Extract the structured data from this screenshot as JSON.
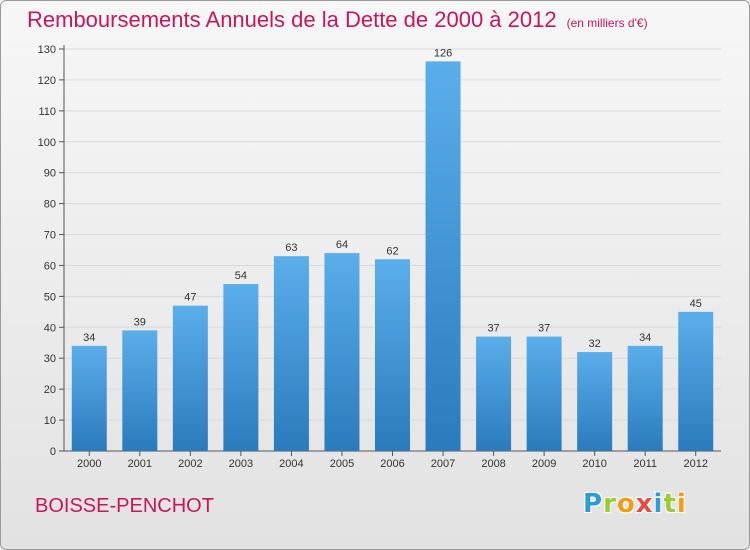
{
  "header": {
    "title": "Remboursements Annuels de la Dette de 2000 à 2012",
    "unit": "(en milliers d'€)"
  },
  "commune": "BOISSE-PENCHOT",
  "logo": {
    "letters": [
      {
        "ch": "P",
        "color": "#2e9ad6"
      },
      {
        "ch": "r",
        "color": "#9acd32"
      },
      {
        "ch": "o",
        "color": "#f39c12"
      },
      {
        "ch": "x",
        "color": "#e74c3c"
      },
      {
        "ch": "i",
        "color": "#2e9ad6"
      },
      {
        "ch": "t",
        "color": "#9acd32"
      },
      {
        "ch": "i",
        "color": "#f39c12"
      }
    ]
  },
  "colors": {
    "title": "#c8165a",
    "bar_top": "#5aaeea",
    "bar_bottom": "#2a7bbd",
    "grid": "#d9d9d9",
    "axis": "#555555"
  },
  "chart_data": {
    "type": "bar",
    "categories": [
      "2000",
      "2001",
      "2002",
      "2003",
      "2004",
      "2005",
      "2006",
      "2007",
      "2008",
      "2009",
      "2010",
      "2011",
      "2012"
    ],
    "values": [
      34,
      39,
      47,
      54,
      63,
      64,
      62,
      126,
      37,
      37,
      32,
      34,
      45
    ],
    "yticks": [
      0,
      10,
      20,
      30,
      40,
      50,
      60,
      70,
      80,
      90,
      100,
      110,
      120,
      130
    ],
    "ylim": [
      0,
      130
    ],
    "grid": true,
    "grid_axis": "y",
    "data_labels": true
  }
}
